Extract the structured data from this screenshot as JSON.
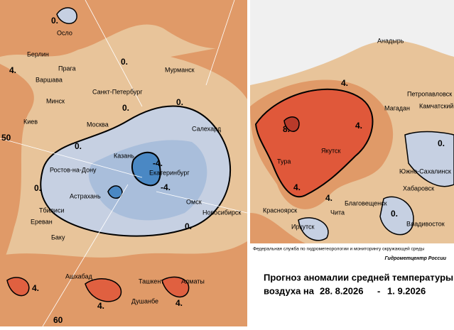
{
  "left_map": {
    "cities": [
      "Осло",
      "Берлин",
      "Прага",
      "Варшава",
      "Санкт-Петербург",
      "Мурманск",
      "Минск",
      "Киев",
      "Москва",
      "Салехард",
      "Казань",
      "Екатеринбург",
      "Ростов-на-Дону",
      "Астрахань",
      "Омск",
      "Новосибирск",
      "Тбилиси",
      "Ереван",
      "Баку",
      "Ашхабад",
      "Ташкент",
      "Алматы",
      "Душанбе"
    ],
    "contour_labels": [
      "0.",
      "4.",
      "0.",
      "0.",
      "0.",
      "0.",
      "-4.",
      "-4.",
      "0.",
      "0.",
      "4.",
      "4.",
      "4."
    ],
    "grid_labels": [
      "50",
      "60"
    ]
  },
  "right_map": {
    "cities": [
      "Анадырь",
      "Петропавловск",
      "Камчатский",
      "Магадан",
      "Якутск",
      "Тура",
      "Южно-Сахалинск",
      "Хабаровск",
      "Благовещенск",
      "Красноярск",
      "Чита",
      "Иркутск",
      "Владивосток"
    ],
    "contour_labels": [
      "4.",
      "8.",
      "4.",
      "4.",
      "4.",
      "0.",
      "0."
    ]
  },
  "info": {
    "agency": "Федеральная служба по гидрометеорологии и мониторингу окружающей среды",
    "center": "Гидрометцентр России",
    "title_line1": "Прогноз аномалии средней температуры",
    "title_line2": "воздуха на",
    "start_date": "28. 8.2026",
    "separator": "-",
    "end_date": "1. 9.2026"
  }
}
